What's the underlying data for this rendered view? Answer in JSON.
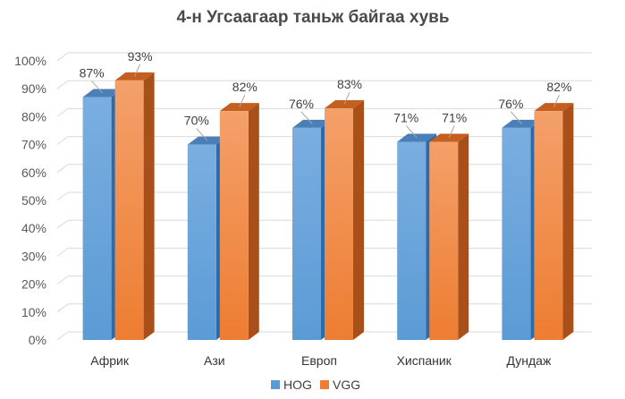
{
  "chart_data": {
    "type": "bar",
    "title": "4-н Угсаагаар таньж байгаа хувь",
    "categories": [
      "Африк",
      "Ази",
      "Европ",
      "Хиспаник",
      "Дундаж"
    ],
    "series": [
      {
        "name": "HOG",
        "values": [
          87,
          70,
          76,
          71,
          76
        ],
        "labels": [
          "87%",
          "70%",
          "76%",
          "71%",
          "76%"
        ],
        "color": "#5b9bd5",
        "side_color": "#2e6aa8",
        "top_color": "#4a7fb8"
      },
      {
        "name": "VGG",
        "values": [
          93,
          82,
          83,
          71,
          82
        ],
        "labels": [
          "93%",
          "82%",
          "83%",
          "71%",
          "82%"
        ],
        "color": "#ed7d31",
        "side_color": "#a9501a",
        "top_color": "#c45f1f"
      }
    ],
    "ylim": [
      0,
      100
    ],
    "yticks": [
      0,
      10,
      20,
      30,
      40,
      50,
      60,
      70,
      80,
      90,
      100
    ],
    "ytick_labels": [
      "0%",
      "10%",
      "20%",
      "30%",
      "40%",
      "50%",
      "60%",
      "70%",
      "80%",
      "90%",
      "100%"
    ],
    "grid": true,
    "legend_position": "bottom"
  }
}
